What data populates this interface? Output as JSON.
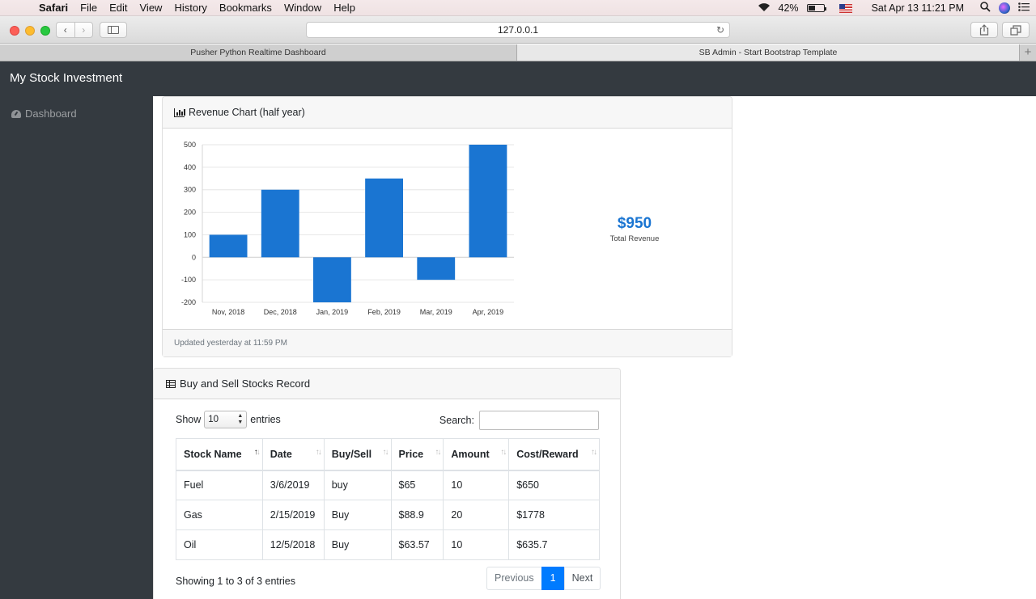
{
  "menubar": {
    "app": "Safari",
    "items": [
      "File",
      "Edit",
      "View",
      "History",
      "Bookmarks",
      "Window",
      "Help"
    ],
    "battery": "42%",
    "clock": "Sat Apr 13  11:21 PM"
  },
  "browser": {
    "url": "127.0.0.1",
    "tabs": [
      "Pusher Python Realtime Dashboard",
      "SB Admin - Start Bootstrap Template"
    ]
  },
  "app": {
    "brand": "My Stock Investment",
    "sidebar_item": "Dashboard"
  },
  "revenue_card": {
    "title": "Revenue Chart (half year)",
    "total_value": "$950",
    "total_label": "Total Revenue",
    "footer": "Updated yesterday at 11:59 PM"
  },
  "chart_data": {
    "type": "bar",
    "title": "",
    "categories": [
      "Nov, 2018",
      "Dec, 2018",
      "Jan, 2019",
      "Feb, 2019",
      "Mar, 2019",
      "Apr, 2019"
    ],
    "values": [
      100,
      300,
      -200,
      350,
      -100,
      500
    ],
    "ylim": [
      -200,
      500
    ],
    "yticks": [
      500,
      400,
      300,
      200,
      100,
      0,
      -100,
      -200
    ],
    "grid": true,
    "color": "#1a75d2",
    "xlabel": "",
    "ylabel": ""
  },
  "records_card": {
    "title": "Buy and Sell Stocks Record",
    "show_label": "Show",
    "entries_label": "entries",
    "length_value": "10",
    "search_label": "Search:",
    "columns": [
      "Stock Name",
      "Date",
      "Buy/Sell",
      "Price",
      "Amount",
      "Cost/Reward"
    ],
    "rows": [
      [
        "Fuel",
        "3/6/2019",
        "buy",
        "$65",
        "10",
        "$650"
      ],
      [
        "Gas",
        "2/15/2019",
        "Buy",
        "$88.9",
        "20",
        "$1778"
      ],
      [
        "Oil",
        "12/5/2018",
        "Buy",
        "$63.57",
        "10",
        "$635.7"
      ]
    ],
    "info": "Showing 1 to 3 of 3 entries",
    "pagination": {
      "previous": "Previous",
      "current": "1",
      "next": "Next"
    }
  }
}
